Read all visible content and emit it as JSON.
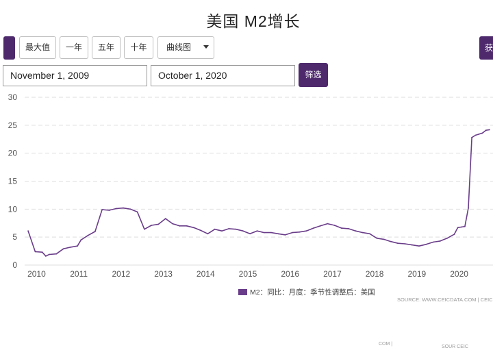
{
  "chart_title": "美国 M2增长",
  "toolbar": {
    "range_buttons": [
      "最大值",
      "一年",
      "五年",
      "十年"
    ],
    "chart_type_select": "曲线图",
    "right_button": "获",
    "start_date": "November 1, 2009",
    "end_date": "October 1, 2020",
    "filter_button": "筛选"
  },
  "colors": {
    "accent": "#4e2a6d",
    "series": "#6a3d8a",
    "grid": "#dddddd"
  },
  "source": "SOURCE: WWW.CEICDATA.COM | CEIC Dat",
  "footer_fragments": [
    "COM | ",
    "SOUR CEIC"
  ],
  "chart_data": {
    "type": "line",
    "title": "美国 M2增长",
    "xlabel": "",
    "ylabel": "",
    "ylim": [
      0,
      30
    ],
    "xlim": [
      "2009-10",
      "2020-11"
    ],
    "y_ticks": [
      0,
      5,
      10,
      15,
      20,
      25,
      30
    ],
    "x_ticks": [
      "2010",
      "2011",
      "2012",
      "2013",
      "2014",
      "2015",
      "2016",
      "2017",
      "2018",
      "2019",
      "2020"
    ],
    "grid": true,
    "legend_position": "bottom-center",
    "series": [
      {
        "name": "M2：同比：月度：季节性调整后：美国",
        "color": "#6a3d8a",
        "x": [
          "2009-11",
          "2010-01",
          "2010-03",
          "2010-04",
          "2010-05",
          "2010-07",
          "2010-09",
          "2010-11",
          "2011-01",
          "2011-02",
          "2011-04",
          "2011-06",
          "2011-08",
          "2011-10",
          "2011-12",
          "2012-02",
          "2012-04",
          "2012-06",
          "2012-08",
          "2012-10",
          "2012-12",
          "2013-02",
          "2013-04",
          "2013-06",
          "2013-08",
          "2013-10",
          "2013-12",
          "2014-02",
          "2014-04",
          "2014-06",
          "2014-08",
          "2014-10",
          "2014-12",
          "2015-02",
          "2015-04",
          "2015-06",
          "2015-08",
          "2015-10",
          "2015-12",
          "2016-02",
          "2016-04",
          "2016-06",
          "2016-08",
          "2016-10",
          "2016-12",
          "2017-02",
          "2017-04",
          "2017-06",
          "2017-08",
          "2017-10",
          "2017-12",
          "2018-02",
          "2018-04",
          "2018-06",
          "2018-08",
          "2018-10",
          "2018-12",
          "2019-02",
          "2019-04",
          "2019-06",
          "2019-08",
          "2019-10",
          "2019-12",
          "2020-01",
          "2020-02",
          "2020-03",
          "2020-04",
          "2020-05",
          "2020-06",
          "2020-07",
          "2020-08",
          "2020-09",
          "2020-10"
        ],
        "values": [
          6.1,
          2.4,
          2.3,
          1.6,
          1.9,
          2.0,
          2.9,
          3.2,
          3.4,
          4.5,
          5.3,
          6.0,
          9.9,
          9.8,
          10.1,
          10.2,
          10.0,
          9.5,
          6.4,
          7.1,
          7.3,
          8.3,
          7.4,
          7.0,
          7.0,
          6.7,
          6.2,
          5.6,
          6.4,
          6.1,
          6.5,
          6.4,
          6.1,
          5.6,
          6.1,
          5.8,
          5.8,
          5.6,
          5.4,
          5.8,
          5.9,
          6.1,
          6.6,
          7.0,
          7.4,
          7.1,
          6.6,
          6.5,
          6.1,
          5.8,
          5.6,
          4.8,
          4.6,
          4.2,
          3.9,
          3.8,
          3.6,
          3.4,
          3.7,
          4.1,
          4.3,
          4.8,
          5.5,
          6.7,
          6.8,
          6.9,
          10.2,
          22.8,
          23.2,
          23.4,
          23.6,
          24.1,
          24.2
        ]
      }
    ]
  }
}
